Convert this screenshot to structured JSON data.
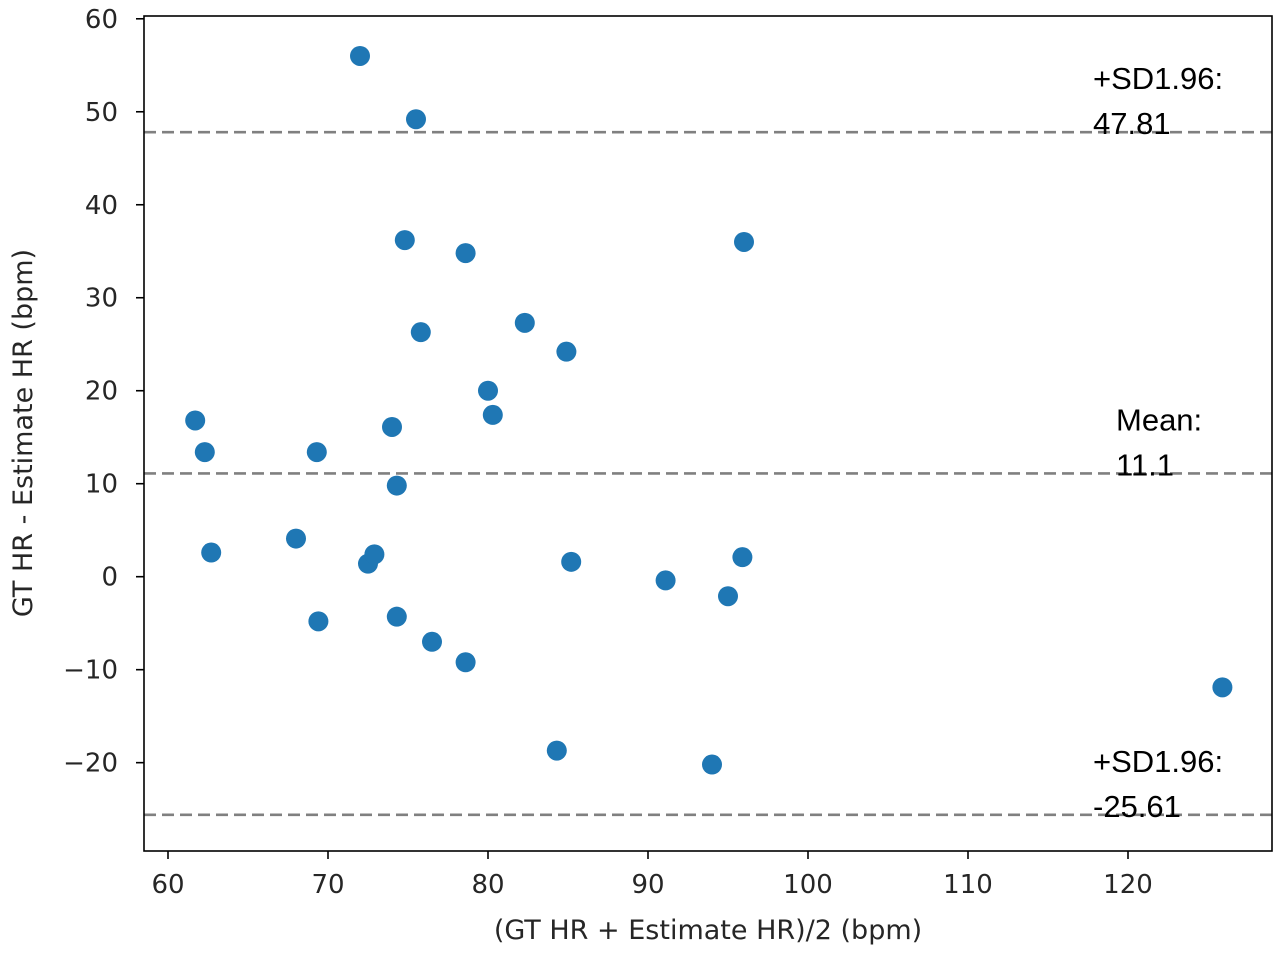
{
  "chart_data": {
    "type": "scatter",
    "title": "",
    "xlabel": "(GT HR + Estimate HR)/2 (bpm)",
    "ylabel": "GT HR - Estimate HR (bpm)",
    "xlim": [
      58.5,
      129
    ],
    "ylim": [
      -29.5,
      60.3
    ],
    "x_ticks": [
      60,
      70,
      80,
      90,
      100,
      110,
      120
    ],
    "y_ticks": [
      -20,
      -10,
      0,
      10,
      20,
      30,
      40,
      50,
      60
    ],
    "x_tick_labels": [
      "60",
      "70",
      "80",
      "90",
      "100",
      "110",
      "120"
    ],
    "y_tick_labels": [
      "−20",
      "−10",
      "0",
      "10",
      "20",
      "30",
      "40",
      "50",
      "60"
    ],
    "grid": false,
    "marker_color": "#1f77b4",
    "line_color": "#808080",
    "points": [
      {
        "x": 72.0,
        "y": 56.0
      },
      {
        "x": 75.5,
        "y": 49.2
      },
      {
        "x": 74.8,
        "y": 36.2
      },
      {
        "x": 78.6,
        "y": 34.8
      },
      {
        "x": 96.0,
        "y": 36.0
      },
      {
        "x": 82.3,
        "y": 27.3
      },
      {
        "x": 75.8,
        "y": 26.3
      },
      {
        "x": 84.9,
        "y": 24.2
      },
      {
        "x": 80.0,
        "y": 20.0
      },
      {
        "x": 80.3,
        "y": 17.4
      },
      {
        "x": 61.7,
        "y": 16.8
      },
      {
        "x": 74.0,
        "y": 16.1
      },
      {
        "x": 62.3,
        "y": 13.4
      },
      {
        "x": 69.3,
        "y": 13.4
      },
      {
        "x": 74.3,
        "y": 9.8
      },
      {
        "x": 62.7,
        "y": 2.6
      },
      {
        "x": 68.0,
        "y": 4.1
      },
      {
        "x": 72.5,
        "y": 1.4
      },
      {
        "x": 72.9,
        "y": 2.4
      },
      {
        "x": 85.2,
        "y": 1.6
      },
      {
        "x": 95.9,
        "y": 2.1
      },
      {
        "x": 91.1,
        "y": -0.4
      },
      {
        "x": 95.0,
        "y": -2.1
      },
      {
        "x": 69.4,
        "y": -4.8
      },
      {
        "x": 74.3,
        "y": -4.3
      },
      {
        "x": 76.5,
        "y": -7.0
      },
      {
        "x": 78.6,
        "y": -9.2
      },
      {
        "x": 125.9,
        "y": -11.9
      },
      {
        "x": 84.3,
        "y": -18.7
      },
      {
        "x": 94.0,
        "y": -20.2
      }
    ],
    "reference_lines": [
      {
        "y": 47.81,
        "label_top": "+SD1.96:",
        "label_bottom": "47.81"
      },
      {
        "y": 11.1,
        "label_top": "Mean:",
        "label_bottom": "11.1"
      },
      {
        "y": -25.61,
        "label_top": "+SD1.96:",
        "label_bottom": "-25.61"
      }
    ]
  }
}
